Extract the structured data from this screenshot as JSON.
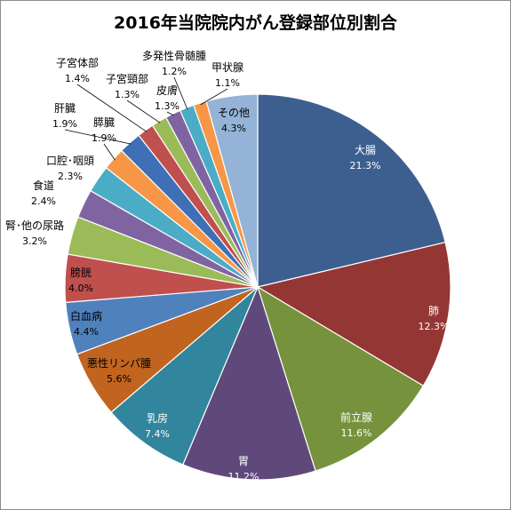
{
  "chart_data": {
    "type": "pie",
    "title": "2016年当院院内がん登録部位別割合",
    "start_angle_deg": 0,
    "direction": "clockwise",
    "slices": [
      {
        "name": "大腸",
        "value": 21.3,
        "label": "21.3%",
        "color": "#3C5F8F",
        "text_color": "#ffffff"
      },
      {
        "name": "肺",
        "value": 12.3,
        "label": "12.3%",
        "color": "#943634",
        "text_color": "#ffffff"
      },
      {
        "name": "前立腺",
        "value": 11.6,
        "label": "11.6%",
        "color": "#76923C",
        "text_color": "#ffffff"
      },
      {
        "name": "胃",
        "value": 11.2,
        "label": "11.2%",
        "color": "#5F497A",
        "text_color": "#ffffff"
      },
      {
        "name": "乳房",
        "value": 7.4,
        "label": "7.4%",
        "color": "#31859C",
        "text_color": "#ffffff"
      },
      {
        "name": "悪性リンパ腫",
        "value": 5.6,
        "label": "5.6%",
        "color": "#C0641F",
        "text_color": "#000000"
      },
      {
        "name": "白血病",
        "value": 4.4,
        "label": "4.4%",
        "color": "#4F81BD",
        "text_color": "#000000"
      },
      {
        "name": "膀胱",
        "value": 4.0,
        "label": "4.0%",
        "color": "#C0504D",
        "text_color": "#000000"
      },
      {
        "name": "腎･他の尿路",
        "value": 3.2,
        "label": "3.2%",
        "color": "#9BBB59",
        "text_color": "#000000"
      },
      {
        "name": "食道",
        "value": 2.4,
        "label": "2.4%",
        "color": "#8064A2",
        "text_color": "#000000"
      },
      {
        "name": "口腔･咽頭",
        "value": 2.3,
        "label": "2.3%",
        "color": "#4BACC6",
        "text_color": "#000000"
      },
      {
        "name": "膵臓",
        "value": 1.9,
        "label": "1.9%",
        "color": "#F79646",
        "text_color": "#000000"
      },
      {
        "name": "肝臓",
        "value": 1.9,
        "label": "1.9%",
        "color": "#3F6FB5",
        "text_color": "#000000"
      },
      {
        "name": "子宮体部",
        "value": 1.4,
        "label": "1.4%",
        "color": "#C0504D",
        "text_color": "#000000"
      },
      {
        "name": "子宮頸部",
        "value": 1.3,
        "label": "1.3%",
        "color": "#9BBB59",
        "text_color": "#000000"
      },
      {
        "name": "皮膚",
        "value": 1.3,
        "label": "1.3%",
        "color": "#8064A2",
        "text_color": "#000000"
      },
      {
        "name": "多発性骨髄腫",
        "value": 1.2,
        "label": "1.2%",
        "color": "#4BACC6",
        "text_color": "#000000"
      },
      {
        "name": "甲状腺",
        "value": 1.1,
        "label": "1.1%",
        "color": "#F79646",
        "text_color": "#000000"
      },
      {
        "name": "その他",
        "value": 4.3,
        "label": "4.3%",
        "color": "#95B3D7",
        "text_color": "#000000"
      }
    ]
  }
}
